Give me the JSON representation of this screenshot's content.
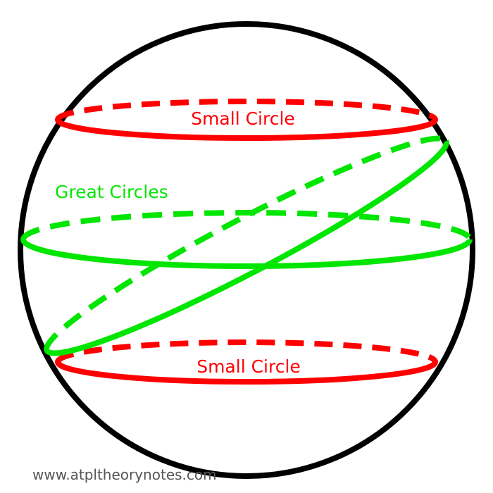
{
  "labels": {
    "small_circle_top": "Small Circle",
    "small_circle_bottom": "Small Circle",
    "great_circles": "Great Circles",
    "watermark": "www.atpltheorynotes.com"
  },
  "colors": {
    "sphere_outline": "#000000",
    "small_circle": "#ff0000",
    "great_circle": "#00e600",
    "watermark": "#555555"
  }
}
